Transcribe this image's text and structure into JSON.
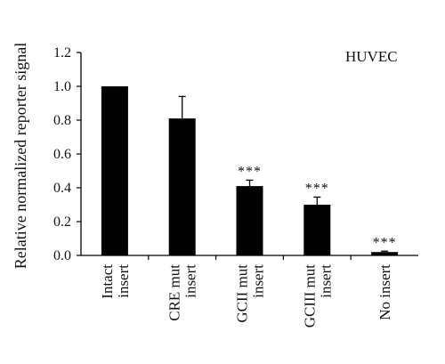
{
  "chart_data": {
    "type": "bar",
    "title": "",
    "annotation": "HUVEC",
    "xlabel": "",
    "ylabel": "Relative normalized reporter signal",
    "ylim": [
      0,
      1.2
    ],
    "yticks": [
      "0.0",
      "0.2",
      "0.4",
      "0.6",
      "0.8",
      "1.0",
      "1.2"
    ],
    "ytick_values": [
      0,
      0.2,
      0.4,
      0.6,
      0.8,
      1.0,
      1.2
    ],
    "categories": [
      [
        "Intact",
        "insert"
      ],
      [
        "CRE mut",
        "insert"
      ],
      [
        "GCII mut",
        "insert"
      ],
      [
        "GCIII mut",
        "insert"
      ],
      [
        "No insert"
      ]
    ],
    "values": [
      1.0,
      0.81,
      0.41,
      0.3,
      0.02
    ],
    "errors": [
      0.0,
      0.13,
      0.035,
      0.045,
      0.005
    ],
    "significance": [
      "",
      "",
      "***",
      "***",
      "***"
    ],
    "bar_color": "#000000",
    "grid": false,
    "legend": "none"
  }
}
